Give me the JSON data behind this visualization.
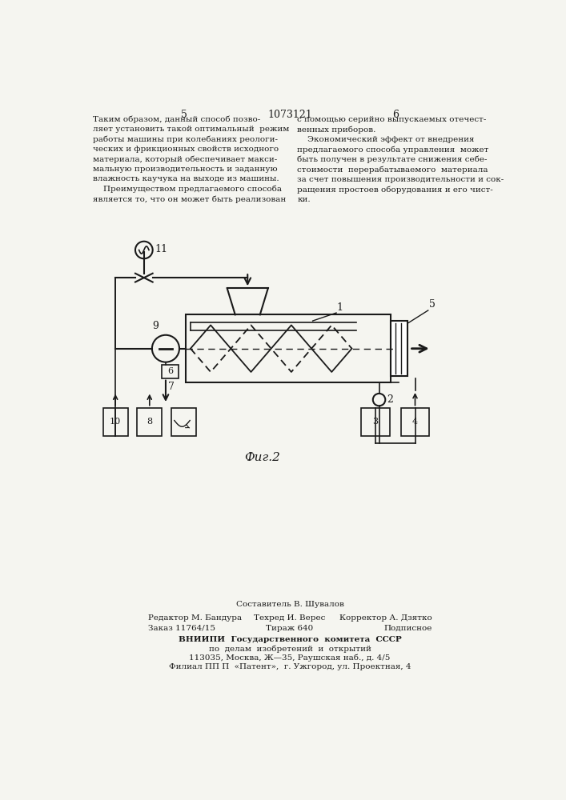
{
  "page_number_left": "5",
  "page_number_center": "1073121",
  "page_number_right": "6",
  "text_left": "Таким образом, данный способ позво-\nляет установить такой оптимальный  режим\nработы машины при колебаниях реологи-\nческих и фрикционных свойств исходного\nматериала, который обеспечивает макси-\nмальную производительность и заданную\nвлажность каучука на выходе из машины.\n    Преимуществом предлагаемого способа\nявляется то, что он может быть реализован",
  "text_right": "с помощью серийно выпускаемых отечест-\nвенных приборов.\n    Экономический эффект от внедрения\nпредлагаемого способа управления  может\nбыть получен в результате снижения себе-\nстоимости  перерабатываемого  материала\nза счет повышения производительности и сок-\nращения простоев оборудования и его чист-\nки.",
  "fig_label": "Фиг.2",
  "footer_line1": "Составитель В. Шувалов",
  "footer_line2_left": "Редактор М. Бандура",
  "footer_line2_center": "Техред И. Верес",
  "footer_line2_right": "Корректор А. Дзятко",
  "footer_line3_left": "Заказ 11764/15",
  "footer_line3_center": "Тираж 640",
  "footer_line3_right": "Подписное",
  "footer_line4": "ВНИИПИ  Государственного  комитета  СССР",
  "footer_line5": "по  делам  изобретений  и  открытий",
  "footer_line6": "113035, Москва, Ж—35, Раушская наб., д. 4/5",
  "footer_line7": "Филиал ПП П  «Патент»,  г. Ужгород, ул. Проектная, 4",
  "bg_color": "#f5f5f0",
  "line_color": "#1a1a1a",
  "text_color": "#1a1a1a"
}
